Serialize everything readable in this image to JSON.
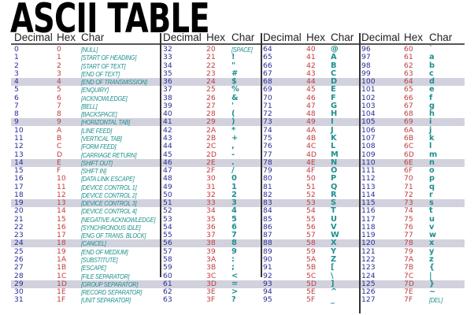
{
  "title": "ASCII TABLE",
  "headers": {
    "decimal": "Decimal",
    "hex": "Hex",
    "char": "Char"
  },
  "colors": {
    "decimal": "#2b2b9c",
    "hex": "#c43c3c",
    "char": "#1d8f8f",
    "highlight": "#d2d2de"
  },
  "highlighted_rows": [
    4,
    9,
    14,
    19,
    24,
    29
  ],
  "groups": [
    [
      [
        "0",
        "0",
        "[NULL]"
      ],
      [
        "1",
        "1",
        "[START OF HEADING]"
      ],
      [
        "2",
        "2",
        "[START OF TEXT]"
      ],
      [
        "3",
        "3",
        "[END OF TEXT]"
      ],
      [
        "4",
        "4",
        "[END OF TRANSMISSION]"
      ],
      [
        "5",
        "5",
        "[ENQUIRY]"
      ],
      [
        "6",
        "6",
        "[ACKNOWLEDGE]"
      ],
      [
        "7",
        "7",
        "[BELL]"
      ],
      [
        "8",
        "8",
        "[BACKSPACE]"
      ],
      [
        "9",
        "9",
        "[HORIZONTAL TAB]"
      ],
      [
        "10",
        "A",
        "[LINE FEED]"
      ],
      [
        "11",
        "B",
        "[VERTICAL TAB]"
      ],
      [
        "12",
        "C",
        "[FORM FEED]"
      ],
      [
        "13",
        "D",
        "[CARRIAGE RETURN]"
      ],
      [
        "14",
        "E",
        "[SHIFT OUT]"
      ],
      [
        "15",
        "F",
        "[SHIFT IN]"
      ],
      [
        "16",
        "10",
        "[DATA LINK ESCAPE]"
      ],
      [
        "17",
        "11",
        "[DEVICE CONTROL 1]"
      ],
      [
        "18",
        "12",
        "[DEVICE CONTROL 2]"
      ],
      [
        "19",
        "13",
        "[DEVICE CONTROL 3]"
      ],
      [
        "20",
        "14",
        "[DEVICE CONTROL 4]"
      ],
      [
        "21",
        "15",
        "[NEGATIVE ACKNOWLEDGE]"
      ],
      [
        "22",
        "16",
        "[SYNCHRONOUS IDLE]"
      ],
      [
        "23",
        "17",
        "[ENG OF TRANS. BLOCK]"
      ],
      [
        "24",
        "18",
        "[CANCEL]"
      ],
      [
        "25",
        "19",
        "[END OF MEDIUM]"
      ],
      [
        "26",
        "1A",
        "[SUBSTITUTE]"
      ],
      [
        "27",
        "1B",
        "[ESCAPE]"
      ],
      [
        "28",
        "1C",
        "[FILE SEPARATOR]"
      ],
      [
        "29",
        "1D",
        "[GROUP SEPARATOR]"
      ],
      [
        "30",
        "1E",
        "[RECORD SEPARATOR]"
      ],
      [
        "31",
        "1F",
        "[UNIT SEPARATOR]"
      ]
    ],
    [
      [
        "32",
        "20",
        "[SPACE]"
      ],
      [
        "33",
        "21",
        "!"
      ],
      [
        "34",
        "22",
        "\""
      ],
      [
        "35",
        "23",
        "#"
      ],
      [
        "36",
        "24",
        "$"
      ],
      [
        "37",
        "25",
        "%"
      ],
      [
        "38",
        "26",
        "&"
      ],
      [
        "39",
        "27",
        "'"
      ],
      [
        "40",
        "28",
        "("
      ],
      [
        "41",
        "29",
        ")"
      ],
      [
        "42",
        "2A",
        "*"
      ],
      [
        "43",
        "2B",
        "+"
      ],
      [
        "44",
        "2C",
        ","
      ],
      [
        "45",
        "2D",
        "-"
      ],
      [
        "46",
        "2E",
        "."
      ],
      [
        "47",
        "2F",
        "/"
      ],
      [
        "48",
        "30",
        "0"
      ],
      [
        "49",
        "31",
        "1"
      ],
      [
        "50",
        "32",
        "2"
      ],
      [
        "51",
        "33",
        "3"
      ],
      [
        "52",
        "34",
        "4"
      ],
      [
        "53",
        "35",
        "5"
      ],
      [
        "54",
        "36",
        "6"
      ],
      [
        "55",
        "37",
        "7"
      ],
      [
        "56",
        "38",
        "8"
      ],
      [
        "57",
        "39",
        "9"
      ],
      [
        "58",
        "3A",
        ":"
      ],
      [
        "59",
        "3B",
        ";"
      ],
      [
        "60",
        "3C",
        "<"
      ],
      [
        "61",
        "3D",
        "="
      ],
      [
        "62",
        "3E",
        ">"
      ],
      [
        "63",
        "3F",
        "?"
      ]
    ],
    [
      [
        "64",
        "40",
        "@"
      ],
      [
        "65",
        "41",
        "A"
      ],
      [
        "66",
        "42",
        "B"
      ],
      [
        "67",
        "43",
        "C"
      ],
      [
        "68",
        "44",
        "D"
      ],
      [
        "69",
        "45",
        "E"
      ],
      [
        "70",
        "46",
        "F"
      ],
      [
        "71",
        "47",
        "G"
      ],
      [
        "72",
        "48",
        "H"
      ],
      [
        "73",
        "49",
        "I"
      ],
      [
        "74",
        "4A",
        "J"
      ],
      [
        "75",
        "4B",
        "K"
      ],
      [
        "76",
        "4C",
        "L"
      ],
      [
        "77",
        "4D",
        "M"
      ],
      [
        "78",
        "4E",
        "N"
      ],
      [
        "79",
        "4F",
        "O"
      ],
      [
        "80",
        "50",
        "P"
      ],
      [
        "81",
        "51",
        "Q"
      ],
      [
        "82",
        "52",
        "R"
      ],
      [
        "83",
        "53",
        "S"
      ],
      [
        "84",
        "54",
        "T"
      ],
      [
        "85",
        "55",
        "U"
      ],
      [
        "86",
        "56",
        "V"
      ],
      [
        "87",
        "57",
        "W"
      ],
      [
        "88",
        "58",
        "X"
      ],
      [
        "89",
        "59",
        "Y"
      ],
      [
        "90",
        "5A",
        "Z"
      ],
      [
        "91",
        "5B",
        "["
      ],
      [
        "92",
        "5C",
        "\\"
      ],
      [
        "93",
        "5D",
        "]"
      ],
      [
        "94",
        "5E",
        "^"
      ],
      [
        "95",
        "5F",
        "_"
      ]
    ],
    [
      [
        "96",
        "60",
        "`"
      ],
      [
        "97",
        "61",
        "a"
      ],
      [
        "98",
        "62",
        "b"
      ],
      [
        "99",
        "63",
        "c"
      ],
      [
        "100",
        "64",
        "d"
      ],
      [
        "101",
        "65",
        "e"
      ],
      [
        "102",
        "66",
        "f"
      ],
      [
        "103",
        "67",
        "g"
      ],
      [
        "104",
        "68",
        "h"
      ],
      [
        "105",
        "69",
        "i"
      ],
      [
        "106",
        "6A",
        "j"
      ],
      [
        "107",
        "6B",
        "k"
      ],
      [
        "108",
        "6C",
        "l"
      ],
      [
        "109",
        "6D",
        "m"
      ],
      [
        "110",
        "6E",
        "n"
      ],
      [
        "111",
        "6F",
        "o"
      ],
      [
        "112",
        "70",
        "p"
      ],
      [
        "113",
        "71",
        "q"
      ],
      [
        "114",
        "72",
        "r"
      ],
      [
        "115",
        "73",
        "s"
      ],
      [
        "116",
        "74",
        "t"
      ],
      [
        "117",
        "75",
        "u"
      ],
      [
        "118",
        "76",
        "v"
      ],
      [
        "119",
        "77",
        "w"
      ],
      [
        "120",
        "78",
        "x"
      ],
      [
        "121",
        "79",
        "y"
      ],
      [
        "122",
        "7A",
        "z"
      ],
      [
        "123",
        "7B",
        "{"
      ],
      [
        "124",
        "7C",
        "|"
      ],
      [
        "125",
        "7D",
        "}"
      ],
      [
        "126",
        "7E",
        "~"
      ],
      [
        "127",
        "7F",
        "[DEL]"
      ]
    ]
  ]
}
